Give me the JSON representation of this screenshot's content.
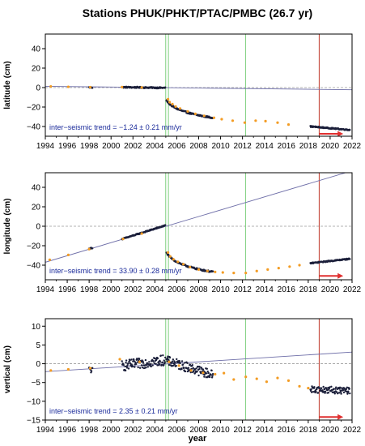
{
  "figure": {
    "title": "Stations PHUK/PHKT/PTAC/PMBC (26.7 yr)",
    "xlabel": "year"
  },
  "chart_data": [
    {
      "type": "scatter",
      "ylabel": "latitude (cm)",
      "xlim": [
        1994,
        2022
      ],
      "ylim": [
        -50,
        55
      ],
      "yticks": [
        -40,
        -20,
        0,
        20,
        40
      ],
      "xticks": [
        1994,
        1996,
        1998,
        2000,
        2002,
        2004,
        2006,
        2008,
        2010,
        2012,
        2014,
        2016,
        2018,
        2020,
        2022
      ],
      "xtick_labels": [
        "1994",
        "1996",
        "1998",
        "2000",
        "2002",
        "2004",
        "2006",
        "2008",
        "2010",
        "2012",
        "2014",
        "2016",
        "2018",
        "2020",
        "2022"
      ],
      "ytick_labels": [
        "−40",
        "−20",
        "0",
        "20",
        "40"
      ],
      "trend_label": "inter−seismic trend = −1.24 ± 0.21 mm/yr",
      "trend_line": {
        "x": [
          1994,
          2022
        ],
        "y": [
          1.3,
          -2.2
        ]
      },
      "vlines_green": [
        2004.99,
        2005.24,
        2012.28
      ],
      "vline_red": 2019.0,
      "arrow": {
        "x_start": 2019.0,
        "x_end": 2021.2,
        "y": -47.5
      },
      "series": [
        {
          "role": "campaign",
          "points": [
            [
              1994.5,
              1.2
            ],
            [
              1996.1,
              0.8
            ],
            [
              1998.1,
              0.4
            ],
            [
              2001.0,
              0.5
            ],
            [
              2002.8,
              0.1
            ],
            [
              2005.2,
              -12
            ],
            [
              2005.35,
              -15
            ],
            [
              2005.6,
              -17
            ],
            [
              2005.9,
              -19.5
            ],
            [
              2006.3,
              -21.5
            ],
            [
              2007.0,
              -24.5
            ],
            [
              2007.7,
              -27
            ],
            [
              2008.5,
              -29
            ],
            [
              2009.4,
              -31
            ],
            [
              2010.1,
              -32.5
            ],
            [
              2011.1,
              -34
            ],
            [
              2012.2,
              -36
            ],
            [
              2013.2,
              -34
            ],
            [
              2014.1,
              -34.5
            ],
            [
              2015.2,
              -36
            ],
            [
              2016.2,
              -38
            ]
          ]
        },
        {
          "role": "continuous",
          "segments": [
            {
              "x0": 1998.0,
              "x1": 1998.3,
              "y0": 0.2,
              "y1": 0.0,
              "noise": 0.6
            },
            {
              "x0": 2001.0,
              "x1": 2004.95,
              "y0": 0.4,
              "y1": -0.3,
              "noise": 0.7
            },
            {
              "x0": 2005.05,
              "x1": 2009.3,
              "y0": -13,
              "y1": -31,
              "noise": 0.8,
              "curve": "log"
            },
            {
              "x0": 2018.2,
              "x1": 2021.8,
              "y0": -40,
              "y1": -43.5,
              "noise": 0.6
            }
          ]
        }
      ]
    },
    {
      "type": "scatter",
      "ylabel": "longitude (cm)",
      "xlim": [
        1994,
        2022
      ],
      "ylim": [
        -55,
        55
      ],
      "yticks": [
        -40,
        -20,
        0,
        20,
        40
      ],
      "xticks": [
        1994,
        1996,
        1998,
        2000,
        2002,
        2004,
        2006,
        2008,
        2010,
        2012,
        2014,
        2016,
        2018,
        2020,
        2022
      ],
      "xtick_labels": [
        "1994",
        "1996",
        "1998",
        "2000",
        "2002",
        "2004",
        "2006",
        "2008",
        "2010",
        "2012",
        "2014",
        "2016",
        "2018",
        "2020",
        "2022"
      ],
      "ytick_labels": [
        "−40",
        "−20",
        "0",
        "20",
        "40"
      ],
      "trend_label": "inter−seismic trend = 33.90 ± 0.28 mm/yr",
      "trend_line": {
        "x": [
          1994,
          2022
        ],
        "y": [
          -37,
          57
        ]
      },
      "vlines_green": [
        2004.99,
        2005.24,
        2012.28
      ],
      "vline_red": 2019.0,
      "arrow": {
        "x_start": 2019.0,
        "x_end": 2021.2,
        "y": -51
      },
      "series": [
        {
          "role": "campaign",
          "points": [
            [
              1994.4,
              -34.5
            ],
            [
              1996.1,
              -29.5
            ],
            [
              1998.0,
              -23.5
            ],
            [
              2001.1,
              -13
            ],
            [
              2002.8,
              -7.5
            ],
            [
              2005.2,
              -27
            ],
            [
              2005.4,
              -31
            ],
            [
              2005.7,
              -34
            ],
            [
              2006.1,
              -36.5
            ],
            [
              2006.6,
              -39
            ],
            [
              2007.2,
              -42
            ],
            [
              2008.0,
              -44.5
            ],
            [
              2008.8,
              -46
            ],
            [
              2009.5,
              -47
            ],
            [
              2010.2,
              -47.5
            ],
            [
              2011.2,
              -48
            ],
            [
              2012.3,
              -48
            ],
            [
              2013.3,
              -46
            ],
            [
              2014.3,
              -44.5
            ],
            [
              2015.3,
              -43
            ],
            [
              2016.3,
              -41.5
            ],
            [
              2017.2,
              -40
            ]
          ]
        },
        {
          "role": "continuous",
          "segments": [
            {
              "x0": 1998.0,
              "x1": 1998.3,
              "y0": -23.2,
              "y1": -22.2,
              "noise": 0.6
            },
            {
              "x0": 2001.0,
              "x1": 2004.95,
              "y0": -13.2,
              "y1": 0.8,
              "noise": 0.6
            },
            {
              "x0": 2005.05,
              "x1": 2009.3,
              "y0": -27,
              "y1": -47,
              "noise": 0.8,
              "curve": "log"
            },
            {
              "x0": 2018.2,
              "x1": 2021.8,
              "y0": -38,
              "y1": -33.5,
              "noise": 0.6
            }
          ]
        }
      ]
    },
    {
      "type": "scatter",
      "ylabel": "vertical (cm)",
      "xlim": [
        1994,
        2022
      ],
      "ylim": [
        -15,
        12
      ],
      "yticks": [
        -15,
        -10,
        -5,
        0,
        5,
        10
      ],
      "xticks": [
        1994,
        1996,
        1998,
        2000,
        2002,
        2004,
        2006,
        2008,
        2010,
        2012,
        2014,
        2016,
        2018,
        2020,
        2022
      ],
      "xtick_labels": [
        "1994",
        "1996",
        "1998",
        "2000",
        "2002",
        "2004",
        "2006",
        "2008",
        "2010",
        "2012",
        "2014",
        "2016",
        "2018",
        "2020",
        "2022"
      ],
      "ytick_labels": [
        "−15",
        "−10",
        "−5",
        "0",
        "5",
        "10"
      ],
      "trend_label": "inter−seismic trend = 2.35 ± 0.21 mm/yr",
      "trend_line": {
        "x": [
          1994,
          2022
        ],
        "y": [
          -2.1,
          3.1
        ]
      },
      "vlines_green": [
        2004.99,
        2005.24,
        2012.28
      ],
      "vline_red": 2019.0,
      "arrow": {
        "x_start": 2019.0,
        "x_end": 2021.2,
        "y": -14.2
      },
      "series": [
        {
          "role": "campaign",
          "points": [
            [
              1994.5,
              -1.8
            ],
            [
              1996.1,
              -1.5
            ],
            [
              1998.1,
              -1.2
            ],
            [
              2000.8,
              1.2
            ],
            [
              2002.6,
              0.5
            ],
            [
              2005.3,
              0.5
            ],
            [
              2006.2,
              -0.5
            ],
            [
              2007.3,
              -1.8
            ],
            [
              2008.4,
              -2.4
            ],
            [
              2009.5,
              -2.8
            ],
            [
              2010.3,
              -2.5
            ],
            [
              2011.2,
              -4.2
            ],
            [
              2012.3,
              -3.5
            ],
            [
              2013.3,
              -4.0
            ],
            [
              2014.2,
              -4.8
            ],
            [
              2015.2,
              -3.8
            ],
            [
              2016.2,
              -4.5
            ],
            [
              2017.2,
              -6.0
            ],
            [
              2018.0,
              -6.5
            ]
          ]
        },
        {
          "role": "continuous",
          "segments": [
            {
              "x0": 1998.0,
              "x1": 1998.3,
              "y0": -1.5,
              "y1": -1.8,
              "noise": 0.8
            },
            {
              "x0": 2001.0,
              "x1": 2004.95,
              "y0": -0.6,
              "y1": 1.0,
              "noise": 1.4
            },
            {
              "x0": 2005.05,
              "x1": 2009.3,
              "y0": 0.8,
              "y1": -3.0,
              "noise": 1.3
            },
            {
              "x0": 2018.2,
              "x1": 2021.8,
              "y0": -6.8,
              "y1": -7.2,
              "noise": 0.9
            }
          ]
        }
      ]
    }
  ]
}
